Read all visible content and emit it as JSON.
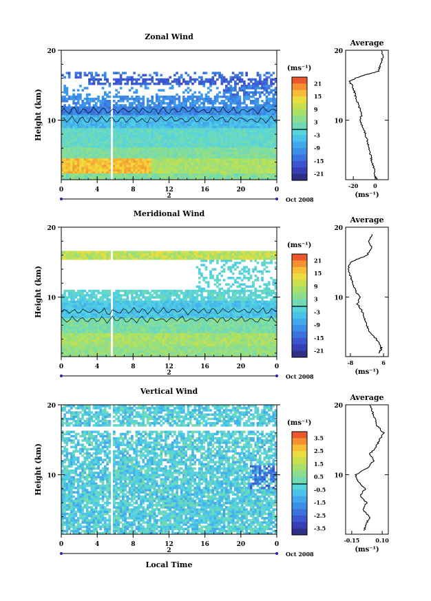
{
  "chart_data": [
    {
      "type": "heatmap",
      "title": "Zonal Wind",
      "ylabel": "Height (km)",
      "ylim": [
        1.5,
        20
      ],
      "y_ticks": [
        "10",
        "20"
      ],
      "x_ticks": [
        "0",
        "4",
        "8",
        "12",
        "16",
        "20",
        "0"
      ],
      "xlim": [
        0,
        24
      ],
      "date_label": "2",
      "date_suffix": "Oct 2008",
      "colorbar": {
        "unit": "(ms⁻¹)",
        "ticks": [
          "21",
          "15",
          "9",
          "3",
          "-3",
          "-9",
          "-15",
          "-21"
        ],
        "range": [
          -24,
          24
        ]
      },
      "profile": {
        "title": "Average",
        "x_ticks": [
          "-20",
          "0"
        ],
        "xlim": [
          -27,
          12
        ],
        "xlabel": "(ms⁻¹)",
        "y_ticks": [
          "10",
          "20"
        ],
        "z": [
          1.5,
          2,
          3,
          4,
          5,
          6,
          7,
          8,
          9,
          10,
          11,
          12,
          13,
          14,
          15,
          15.5,
          16,
          16.5,
          17,
          18,
          19,
          20
        ],
        "values": [
          2,
          0,
          -1,
          -3,
          -4,
          -6,
          -7,
          -9,
          -11,
          -14,
          -12,
          -15,
          -17,
          -19,
          -21,
          -24,
          -18,
          -9,
          3,
          5,
          7,
          6
        ]
      }
    },
    {
      "type": "heatmap",
      "title": "Meridional Wind",
      "ylabel": "Height (km)",
      "ylim": [
        1.5,
        20
      ],
      "y_ticks": [
        "10",
        "20"
      ],
      "x_ticks": [
        "0",
        "4",
        "8",
        "12",
        "16",
        "20",
        "0"
      ],
      "xlim": [
        0,
        24
      ],
      "date_label": "2",
      "date_suffix": "Oct 2008",
      "colorbar": {
        "unit": "(ms⁻¹)",
        "ticks": [
          "21",
          "15",
          "9",
          "3",
          "-3",
          "-9",
          "-15",
          "-21"
        ],
        "range": [
          -24,
          24
        ]
      },
      "profile": {
        "title": "Average",
        "x_ticks": [
          "-8",
          "6"
        ],
        "xlim": [
          -10,
          8
        ],
        "xlabel": "(ms⁻¹)",
        "y_ticks": [
          "10",
          "20"
        ],
        "z": [
          2,
          2.5,
          3,
          4,
          5,
          6,
          7,
          8,
          9,
          10,
          11,
          12,
          13,
          14,
          15,
          16,
          17,
          18,
          19
        ],
        "values": [
          4,
          5,
          5,
          3,
          0,
          -1,
          -2,
          -3,
          -5,
          -4,
          -6,
          -7,
          -8,
          -9,
          -8,
          -1,
          1,
          0,
          1
        ]
      }
    },
    {
      "type": "heatmap",
      "title": "Vertical Wind",
      "ylabel": "Height (km)",
      "xlabel": "Local Time",
      "ylim": [
        1.5,
        20
      ],
      "y_ticks": [
        "10",
        "20"
      ],
      "x_ticks": [
        "0",
        "4",
        "8",
        "12",
        "16",
        "20",
        "0"
      ],
      "xlim": [
        0,
        24
      ],
      "date_label": "2",
      "date_suffix": "Oct 2008",
      "colorbar": {
        "unit": "(ms⁻¹)",
        "ticks": [
          "3.5",
          "2.5",
          "1.5",
          "0.5",
          "-0.5",
          "-1.5",
          "-2.5",
          "-3.5"
        ],
        "range": [
          -4,
          4
        ]
      },
      "profile": {
        "title": "Average",
        "x_ticks": [
          "-0.15",
          "0.10"
        ],
        "xlim": [
          -0.2,
          0.15
        ],
        "xlabel": "(ms⁻¹)",
        "y_ticks": [
          "10",
          "20"
        ],
        "z": [
          2,
          3,
          4,
          5,
          6,
          7,
          8,
          9,
          10,
          11,
          12,
          13,
          14,
          15,
          16,
          17,
          18,
          19,
          20
        ],
        "values": [
          -0.05,
          -0.03,
          0.0,
          -0.06,
          -0.03,
          -0.08,
          -0.04,
          -0.1,
          -0.12,
          -0.02,
          0.03,
          0.0,
          0.05,
          0.08,
          0.11,
          0.06,
          0.04,
          0.02,
          0.0
        ]
      }
    }
  ]
}
